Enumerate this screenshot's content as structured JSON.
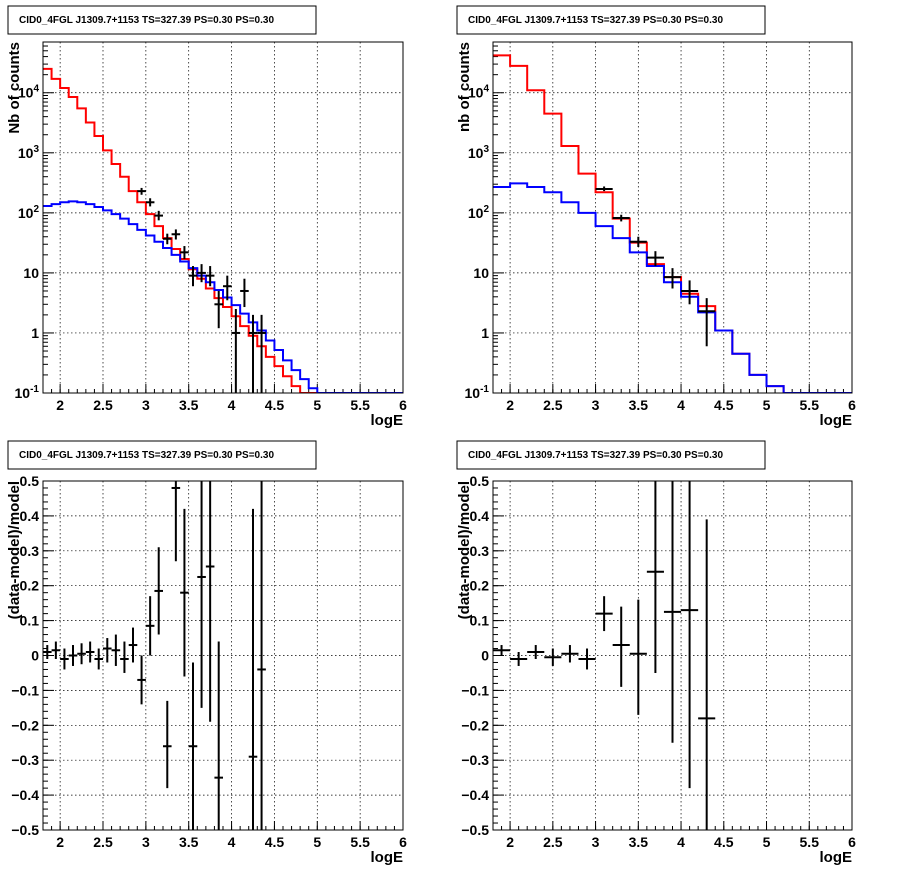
{
  "chart_data": [
    {
      "title": "CID0_4FGL J1309.7+1153 TS=327.39 PS=0.30 PS=0.30",
      "type": "line",
      "xlabel": "logE",
      "ylabel": "Nb of counts",
      "xlim": [
        1.8,
        6.0
      ],
      "ylim": [
        0.1,
        70000
      ],
      "yscale": "log",
      "grid": true,
      "xticks": [
        "2",
        "2.5",
        "3",
        "3.5",
        "4",
        "4.5",
        "5",
        "5.5",
        "6"
      ],
      "yticks": [
        "10^-1",
        "1",
        "10",
        "10^2",
        "10^3",
        "10^4"
      ],
      "bin_edges": [
        1.8,
        1.9,
        2.0,
        2.1,
        2.2,
        2.3,
        2.4,
        2.5,
        2.6,
        2.7,
        2.8,
        2.9,
        3.0,
        3.1,
        3.2,
        3.3,
        3.4,
        3.5,
        3.6,
        3.7,
        3.8,
        3.9,
        4.0,
        4.1,
        4.2,
        4.3,
        4.4,
        4.5,
        4.6,
        4.7,
        4.8,
        4.9,
        5.0,
        5.1,
        5.2,
        5.3,
        5.4,
        5.5,
        5.6,
        5.7,
        5.8,
        5.9,
        6.0
      ],
      "series": [
        {
          "color": "#ff0000",
          "values": [
            25000,
            17000,
            12000,
            8500,
            5500,
            3200,
            1900,
            1100,
            650,
            400,
            230,
            150,
            95,
            60,
            38,
            25,
            17,
            11.5,
            8,
            5.5,
            3.8,
            2.7,
            1.9,
            1.3,
            0.9,
            0.6,
            0.4,
            0.28,
            0.19,
            0.13,
            0.1,
            0.1,
            0.1,
            0.1,
            0.1,
            0.1,
            0.1,
            0.1,
            0.1,
            0.1,
            0.1,
            0.1
          ]
        },
        {
          "color": "#0000ff",
          "values": [
            130,
            140,
            150,
            155,
            150,
            140,
            125,
            110,
            95,
            80,
            65,
            52,
            42,
            33,
            26,
            20,
            15.5,
            12,
            9,
            7,
            5.2,
            3.9,
            2.9,
            2.1,
            1.5,
            1.1,
            0.75,
            0.52,
            0.35,
            0.24,
            0.17,
            0.12,
            0.1,
            0.1,
            0.1,
            0.1,
            0.1,
            0.1,
            0.1,
            0.1,
            0.1,
            0.1
          ]
        }
      ],
      "points": [
        {
          "x": 2.95,
          "y": 230,
          "ex": 0.05,
          "lo": 200,
          "hi": 260
        },
        {
          "x": 3.05,
          "y": 150,
          "ex": 0.05,
          "lo": 128,
          "hi": 175
        },
        {
          "x": 3.15,
          "y": 90,
          "ex": 0.05,
          "lo": 75,
          "hi": 108
        },
        {
          "x": 3.25,
          "y": 37,
          "ex": 0.05,
          "lo": 30,
          "hi": 45
        },
        {
          "x": 3.35,
          "y": 44,
          "ex": 0.05,
          "lo": 36,
          "hi": 53
        },
        {
          "x": 3.45,
          "y": 22,
          "ex": 0.05,
          "lo": 17,
          "hi": 28
        },
        {
          "x": 3.55,
          "y": 9,
          "ex": 0.05,
          "lo": 6,
          "hi": 13
        },
        {
          "x": 3.65,
          "y": 10,
          "ex": 0.05,
          "lo": 7,
          "hi": 14
        },
        {
          "x": 3.75,
          "y": 9,
          "ex": 0.05,
          "lo": 6,
          "hi": 13
        },
        {
          "x": 3.85,
          "y": 3,
          "ex": 0.05,
          "lo": 1.2,
          "hi": 5
        },
        {
          "x": 3.95,
          "y": 6,
          "ex": 0.05,
          "lo": 3.5,
          "hi": 9
        },
        {
          "x": 4.05,
          "y": 1,
          "ex": 0.05,
          "lo": 0.1,
          "hi": 2.5
        },
        {
          "x": 4.15,
          "y": 5,
          "ex": 0.05,
          "lo": 2.7,
          "hi": 8
        },
        {
          "x": 4.25,
          "y": 1,
          "ex": 0.05,
          "lo": 0.1,
          "hi": 2
        },
        {
          "x": 4.35,
          "y": 1,
          "ex": 0.05,
          "lo": 0.1,
          "hi": 2
        }
      ]
    },
    {
      "title": "CID0_4FGL J1309.7+1153 TS=327.39 PS=0.30 PS=0.30",
      "type": "line",
      "xlabel": "logE",
      "ylabel": "nb of counts",
      "xlim": [
        1.8,
        6.0
      ],
      "ylim": [
        0.1,
        70000
      ],
      "yscale": "log",
      "grid": true,
      "xticks": [
        "2",
        "2.5",
        "3",
        "3.5",
        "4",
        "4.5",
        "5",
        "5.5",
        "6"
      ],
      "yticks": [
        "10^-1",
        "1",
        "10",
        "10^2",
        "10^3",
        "10^4"
      ],
      "bin_edges": [
        1.8,
        2.0,
        2.2,
        2.4,
        2.6,
        2.8,
        3.0,
        3.2,
        3.4,
        3.6,
        3.8,
        4.0,
        4.2,
        4.4,
        4.6,
        4.8,
        5.0,
        5.2,
        5.4,
        5.6,
        5.8,
        6.0
      ],
      "series": [
        {
          "color": "#ff0000",
          "values": [
            42000,
            28000,
            11000,
            4500,
            1300,
            450,
            220,
            80,
            32,
            14,
            8.5,
            4.5,
            2.8,
            1.1,
            0.45,
            0.2,
            0.13,
            0.1,
            0.1,
            0.1,
            0.1
          ]
        },
        {
          "color": "#0000ff",
          "values": [
            270,
            310,
            270,
            220,
            150,
            100,
            60,
            38,
            22,
            13,
            7,
            4,
            2.2,
            1.1,
            0.45,
            0.2,
            0.13,
            0.1,
            0.1,
            0.1,
            0.1
          ]
        }
      ],
      "points": [
        {
          "x": 3.1,
          "y": 250,
          "ex": 0.1,
          "lo": 230,
          "hi": 275
        },
        {
          "x": 3.3,
          "y": 82,
          "ex": 0.1,
          "lo": 72,
          "hi": 93
        },
        {
          "x": 3.5,
          "y": 33,
          "ex": 0.1,
          "lo": 27,
          "hi": 40
        },
        {
          "x": 3.7,
          "y": 18,
          "ex": 0.1,
          "lo": 13,
          "hi": 23
        },
        {
          "x": 3.9,
          "y": 8.5,
          "ex": 0.1,
          "lo": 5.5,
          "hi": 12
        },
        {
          "x": 4.1,
          "y": 5,
          "ex": 0.1,
          "lo": 3,
          "hi": 7.5
        },
        {
          "x": 4.3,
          "y": 2.3,
          "ex": 0.1,
          "lo": 0.6,
          "hi": 3.8
        }
      ]
    },
    {
      "title": "CID0_4FGL J1309.7+1153 TS=327.39 PS=0.30 PS=0.30",
      "type": "scatter",
      "xlabel": "logE",
      "ylabel": "(data-model)/model",
      "xlim": [
        1.8,
        6.0
      ],
      "ylim": [
        -0.5,
        0.5
      ],
      "grid": true,
      "xticks": [
        "2",
        "2.5",
        "3",
        "3.5",
        "4",
        "4.5",
        "5",
        "5.5",
        "6"
      ],
      "yticks": [
        "−0.5",
        "−0.4",
        "−0.3",
        "−0.2",
        "−0.1",
        "0",
        "0.1",
        "0.2",
        "0.3",
        "0.4",
        "0.5"
      ],
      "points": [
        {
          "x": 1.85,
          "y": 0.01,
          "ex": 0.05,
          "lo": -0.01,
          "hi": 0.03
        },
        {
          "x": 1.95,
          "y": 0.015,
          "ex": 0.05,
          "lo": -0.01,
          "hi": 0.04
        },
        {
          "x": 2.05,
          "y": -0.01,
          "ex": 0.05,
          "lo": -0.04,
          "hi": 0.02
        },
        {
          "x": 2.15,
          "y": 0.0,
          "ex": 0.05,
          "lo": -0.03,
          "hi": 0.03
        },
        {
          "x": 2.25,
          "y": 0.005,
          "ex": 0.05,
          "lo": -0.025,
          "hi": 0.035
        },
        {
          "x": 2.35,
          "y": 0.01,
          "ex": 0.05,
          "lo": -0.02,
          "hi": 0.04
        },
        {
          "x": 2.45,
          "y": -0.01,
          "ex": 0.05,
          "lo": -0.04,
          "hi": 0.02
        },
        {
          "x": 2.55,
          "y": 0.02,
          "ex": 0.05,
          "lo": -0.02,
          "hi": 0.05
        },
        {
          "x": 2.65,
          "y": 0.015,
          "ex": 0.05,
          "lo": -0.03,
          "hi": 0.06
        },
        {
          "x": 2.75,
          "y": -0.01,
          "ex": 0.05,
          "lo": -0.05,
          "hi": 0.04
        },
        {
          "x": 2.85,
          "y": 0.03,
          "ex": 0.05,
          "lo": -0.02,
          "hi": 0.08
        },
        {
          "x": 2.95,
          "y": -0.07,
          "ex": 0.05,
          "lo": -0.14,
          "hi": 0.0
        },
        {
          "x": 3.05,
          "y": 0.085,
          "ex": 0.05,
          "lo": 0.0,
          "hi": 0.17
        },
        {
          "x": 3.15,
          "y": 0.185,
          "ex": 0.05,
          "lo": 0.06,
          "hi": 0.31
        },
        {
          "x": 3.25,
          "y": -0.26,
          "ex": 0.05,
          "lo": -0.38,
          "hi": -0.13
        },
        {
          "x": 3.35,
          "y": 0.48,
          "ex": 0.05,
          "lo": 0.27,
          "hi": 0.5
        },
        {
          "x": 3.45,
          "y": 0.18,
          "ex": 0.05,
          "lo": -0.06,
          "hi": 0.42
        },
        {
          "x": 3.55,
          "y": -0.26,
          "ex": 0.05,
          "lo": -0.5,
          "hi": -0.02
        },
        {
          "x": 3.65,
          "y": 0.225,
          "ex": 0.05,
          "lo": -0.15,
          "hi": 0.5
        },
        {
          "x": 3.75,
          "y": 0.255,
          "ex": 0.05,
          "lo": -0.19,
          "hi": 0.5
        },
        {
          "x": 3.85,
          "y": -0.35,
          "ex": 0.05,
          "lo": -0.5,
          "hi": 0.04
        },
        {
          "x": 4.25,
          "y": -0.29,
          "ex": 0.05,
          "lo": -0.5,
          "hi": 0.42
        },
        {
          "x": 4.35,
          "y": -0.04,
          "ex": 0.05,
          "lo": -0.5,
          "hi": 0.5
        }
      ]
    },
    {
      "title": "CID0_4FGL J1309.7+1153 TS=327.39 PS=0.30 PS=0.30",
      "type": "scatter",
      "xlabel": "logE",
      "ylabel": "(data-model)/model",
      "xlim": [
        1.8,
        6.0
      ],
      "ylim": [
        -0.5,
        0.5
      ],
      "grid": true,
      "xticks": [
        "2",
        "2.5",
        "3",
        "3.5",
        "4",
        "4.5",
        "5",
        "5.5",
        "6"
      ],
      "yticks": [
        "−0.5",
        "−0.4",
        "−0.3",
        "−0.2",
        "−0.1",
        "0",
        "0.1",
        "0.2",
        "0.3",
        "0.4",
        "0.5"
      ],
      "points": [
        {
          "x": 1.9,
          "y": 0.015,
          "ex": 0.1,
          "lo": 0.0,
          "hi": 0.03
        },
        {
          "x": 2.1,
          "y": -0.01,
          "ex": 0.1,
          "lo": -0.03,
          "hi": 0.01
        },
        {
          "x": 2.3,
          "y": 0.01,
          "ex": 0.1,
          "lo": -0.01,
          "hi": 0.03
        },
        {
          "x": 2.5,
          "y": -0.005,
          "ex": 0.1,
          "lo": -0.03,
          "hi": 0.02
        },
        {
          "x": 2.7,
          "y": 0.005,
          "ex": 0.1,
          "lo": -0.02,
          "hi": 0.03
        },
        {
          "x": 2.9,
          "y": -0.01,
          "ex": 0.1,
          "lo": -0.04,
          "hi": 0.02
        },
        {
          "x": 3.1,
          "y": 0.12,
          "ex": 0.1,
          "lo": 0.07,
          "hi": 0.17
        },
        {
          "x": 3.3,
          "y": 0.03,
          "ex": 0.1,
          "lo": -0.09,
          "hi": 0.14
        },
        {
          "x": 3.5,
          "y": 0.005,
          "ex": 0.1,
          "lo": -0.17,
          "hi": 0.16
        },
        {
          "x": 3.7,
          "y": 0.24,
          "ex": 0.1,
          "lo": -0.05,
          "hi": 0.5
        },
        {
          "x": 3.9,
          "y": 0.125,
          "ex": 0.1,
          "lo": -0.25,
          "hi": 0.5
        },
        {
          "x": 4.1,
          "y": 0.13,
          "ex": 0.1,
          "lo": -0.38,
          "hi": 0.5
        },
        {
          "x": 4.3,
          "y": -0.18,
          "ex": 0.1,
          "lo": -0.5,
          "hi": 0.39
        }
      ]
    }
  ]
}
